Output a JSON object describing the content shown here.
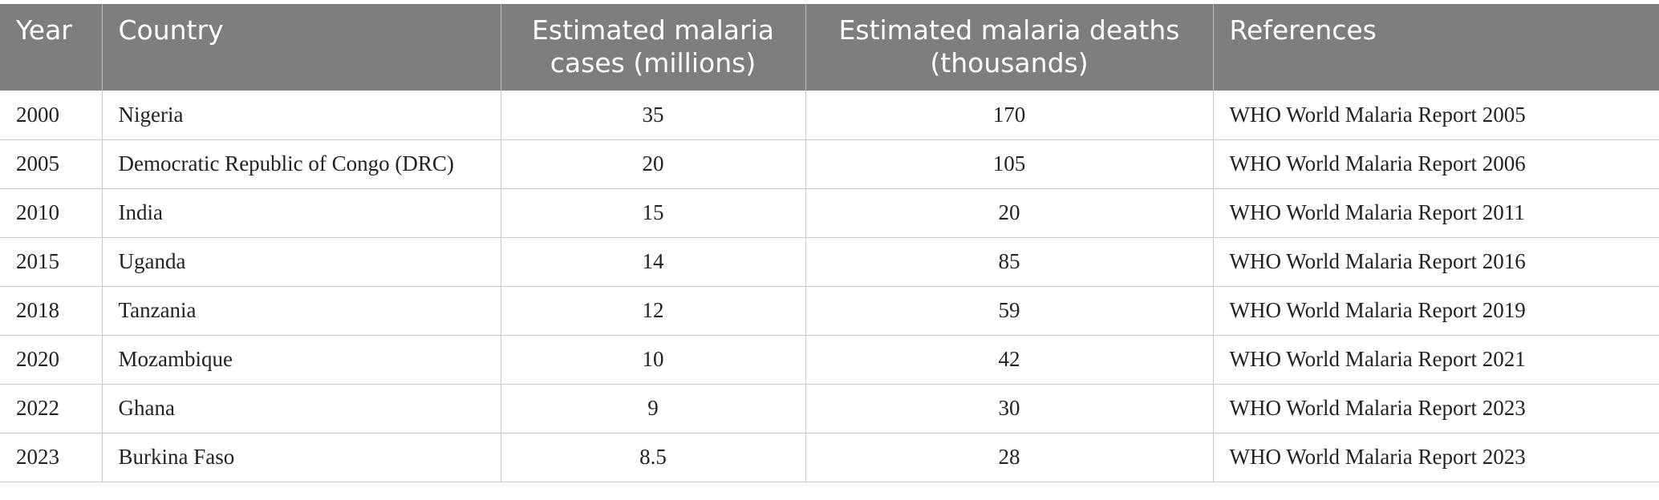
{
  "table": {
    "headers": [
      "Year",
      "Country",
      "Estimated malaria cases (millions)",
      "Estimated malaria deaths (thousands)",
      "References"
    ],
    "rows": [
      {
        "year": "2000",
        "country": "Nigeria",
        "cases": "35",
        "deaths": "170",
        "reference": "WHO World Malaria Report 2005"
      },
      {
        "year": "2005",
        "country": "Democratic Republic of Congo (DRC)",
        "cases": "20",
        "deaths": "105",
        "reference": "WHO World Malaria Report 2006"
      },
      {
        "year": "2010",
        "country": "India",
        "cases": "15",
        "deaths": "20",
        "reference": "WHO World Malaria Report 2011"
      },
      {
        "year": "2015",
        "country": "Uganda",
        "cases": "14",
        "deaths": "85",
        "reference": "WHO World Malaria Report 2016"
      },
      {
        "year": "2018",
        "country": "Tanzania",
        "cases": "12",
        "deaths": "59",
        "reference": "WHO World Malaria Report 2019"
      },
      {
        "year": "2020",
        "country": "Mozambique",
        "cases": "10",
        "deaths": "42",
        "reference": "WHO World Malaria Report 2021"
      },
      {
        "year": "2022",
        "country": "Ghana",
        "cases": "9",
        "deaths": "30",
        "reference": "WHO World Malaria Report 2023"
      },
      {
        "year": "2023",
        "country": "Burkina Faso",
        "cases": "8.5",
        "deaths": "28",
        "reference": "WHO World Malaria Report 2023"
      }
    ]
  },
  "colors": {
    "header_bg": "#7d7e7d",
    "header_text": "#ffffff",
    "grid_line": "#c9c9c9"
  }
}
